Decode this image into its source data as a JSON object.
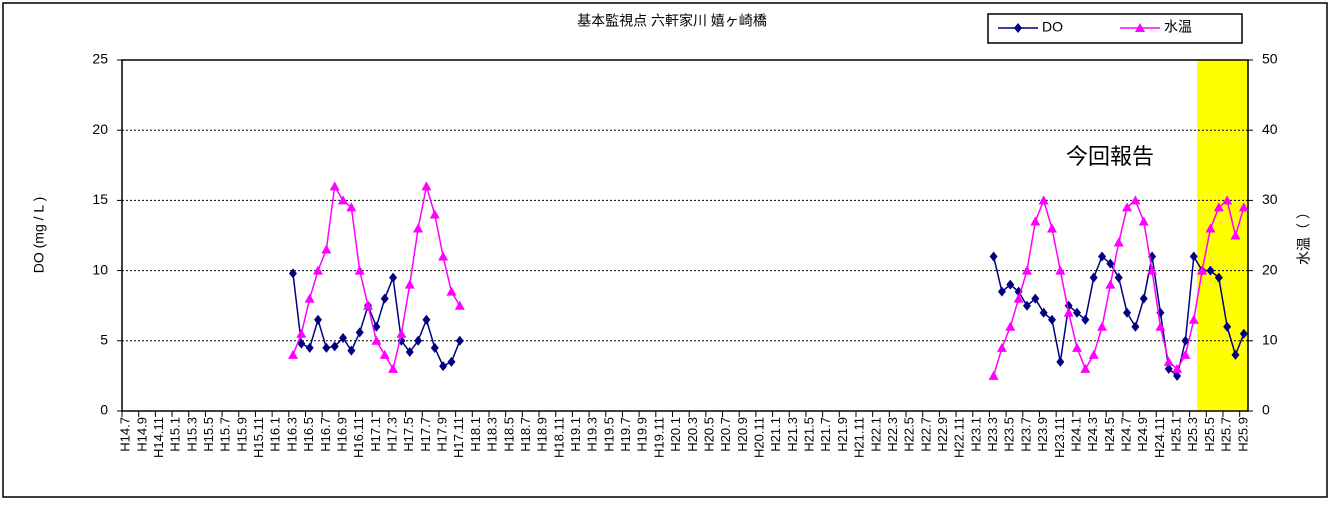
{
  "chart_data": {
    "type": "line",
    "title": "基本監視点 六軒家川 嬉ヶ崎橋",
    "y_label": "DO (mg / L )",
    "y2_label": "水温（ ）",
    "annotation": "今回報告",
    "categories": [
      "H14.7",
      null,
      "H14.9",
      null,
      "H14.11",
      null,
      "H15.1",
      null,
      "H15.3",
      null,
      "H15.5",
      null,
      "H15.7",
      null,
      "H15.9",
      null,
      "H15.11",
      null,
      "H16.1",
      null,
      "H16.3",
      null,
      "H16.5",
      null,
      "H16.7",
      null,
      "H16.9",
      null,
      "H16.11",
      null,
      "H17.1",
      null,
      "H17.3",
      null,
      "H17.5",
      null,
      "H17.7",
      null,
      "H17.9",
      null,
      "H17.11",
      null,
      "H18.1",
      null,
      "H18.3",
      null,
      "H18.5",
      null,
      "H18.7",
      null,
      "H18.9",
      null,
      "H18.11",
      null,
      "H19.1",
      null,
      "H19.3",
      null,
      "H19.5",
      null,
      "H19.7",
      null,
      "H19.9",
      null,
      "H19.11",
      null,
      "H20.1",
      null,
      "H20.3",
      null,
      "H20.5",
      null,
      "H20.7",
      null,
      "H20.9",
      null,
      "H20.11",
      null,
      "H21.1",
      null,
      "H21.3",
      null,
      "H21.5",
      null,
      "H21.7",
      null,
      "H21.9",
      null,
      "H21.11",
      null,
      "H22.1",
      null,
      "H22.3",
      null,
      "H22.5",
      null,
      "H22.7",
      null,
      "H22.9",
      null,
      "H22.11",
      null,
      "H23.1",
      null,
      "H23.3",
      null,
      "H23.5",
      null,
      "H23.7",
      null,
      "H23.9",
      null,
      "H23.11",
      null,
      "H24.1",
      null,
      "H24.3",
      null,
      "H24.5",
      null,
      "H24.7",
      null,
      "H24.9",
      null,
      "H24.11",
      null,
      "H25.1",
      null,
      "H25.3",
      null,
      "H25.5",
      null,
      "H25.7",
      null,
      "H25.9"
    ],
    "series": [
      {
        "name": "DO",
        "color": "#000080",
        "marker": "diamond",
        "values": [
          null,
          null,
          null,
          null,
          null,
          null,
          null,
          null,
          null,
          null,
          null,
          null,
          null,
          null,
          null,
          null,
          null,
          null,
          null,
          null,
          9.8,
          4.8,
          4.5,
          6.5,
          4.5,
          4.6,
          5.2,
          4.3,
          5.6,
          7.5,
          6.0,
          8.0,
          9.5,
          5.0,
          4.2,
          5.0,
          6.5,
          4.5,
          3.2,
          3.5,
          5.0,
          null,
          null,
          null,
          null,
          null,
          null,
          null,
          null,
          null,
          null,
          null,
          null,
          null,
          null,
          null,
          null,
          null,
          null,
          null,
          null,
          null,
          null,
          null,
          null,
          null,
          null,
          null,
          null,
          null,
          null,
          null,
          null,
          null,
          null,
          null,
          null,
          null,
          null,
          null,
          null,
          null,
          null,
          null,
          null,
          null,
          null,
          null,
          null,
          null,
          null,
          null,
          null,
          null,
          null,
          null,
          null,
          null,
          null,
          null,
          null,
          null,
          null,
          null,
          11,
          8.5,
          9,
          8.5,
          7.5,
          8,
          7,
          6.5,
          3.5,
          7.5,
          7,
          6.5,
          9.5,
          11,
          10.5,
          9.5,
          7,
          6,
          8,
          11,
          7,
          3,
          2.5,
          5,
          11,
          10,
          10,
          9.5,
          6,
          4,
          5.5
        ]
      },
      {
        "name": "水温",
        "color": "#ff00ff",
        "marker": "triangle",
        "axis": "y2",
        "values": [
          null,
          null,
          null,
          null,
          null,
          null,
          null,
          null,
          null,
          null,
          null,
          null,
          null,
          null,
          null,
          null,
          null,
          null,
          null,
          null,
          8,
          11,
          16,
          20,
          23,
          32,
          30,
          29,
          20,
          15,
          10,
          8,
          6,
          11,
          18,
          26,
          32,
          28,
          22,
          17,
          15,
          null,
          null,
          null,
          null,
          null,
          null,
          null,
          null,
          null,
          null,
          null,
          null,
          null,
          null,
          null,
          null,
          null,
          null,
          null,
          null,
          null,
          null,
          null,
          null,
          null,
          null,
          null,
          null,
          null,
          null,
          null,
          null,
          null,
          null,
          null,
          null,
          null,
          null,
          null,
          null,
          null,
          null,
          null,
          null,
          null,
          null,
          null,
          null,
          null,
          null,
          null,
          null,
          null,
          null,
          null,
          null,
          null,
          null,
          null,
          null,
          null,
          null,
          null,
          5,
          9,
          12,
          16,
          20,
          27,
          30,
          26,
          20,
          14,
          9,
          6,
          8,
          12,
          18,
          24,
          29,
          30,
          27,
          20,
          12,
          7,
          6,
          8,
          13,
          20,
          26,
          29,
          30,
          25,
          29
        ]
      }
    ],
    "ylim": [
      0,
      25
    ],
    "yticks": [
      0,
      5,
      10,
      15,
      20,
      25
    ],
    "y2lim": [
      0,
      50
    ],
    "y2ticks": [
      0,
      10,
      20,
      30,
      40,
      50
    ],
    "grid": true,
    "legend": "top-right"
  }
}
